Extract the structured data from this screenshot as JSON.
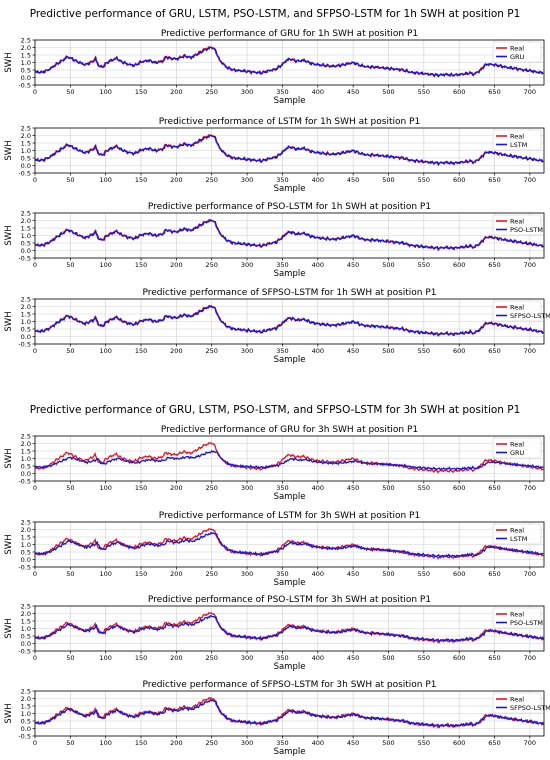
{
  "figure": {
    "suptitle_1h": "Predictive performance of GRU, LSTM, PSO-LSTM, and SFPSO-LSTM for 1h SWH at position P1",
    "suptitle_3h": "Predictive performance of GRU, LSTM, PSO-LSTM, and SFPSO-LSTM for 3h SWH at position P1"
  },
  "colors": {
    "real": "#e8141c",
    "pred": "#1414e6",
    "grid": "#cfcfcf"
  },
  "chart_data": [
    {
      "type": "line",
      "title": "Predictive performance of GRU for 1h SWH at position P1",
      "xlabel": "Sample",
      "ylabel": "SWH",
      "xlim": [
        0,
        720
      ],
      "ylim": [
        -0.5,
        2.5
      ],
      "xticks": [
        0,
        50,
        100,
        150,
        200,
        250,
        300,
        350,
        400,
        450,
        500,
        550,
        600,
        650,
        700
      ],
      "yticks": [
        -0.5,
        0.0,
        0.5,
        1.0,
        1.5,
        2.0,
        2.5
      ],
      "grid": true,
      "legend": "top-right",
      "series": [
        {
          "name": "Real"
        },
        {
          "name": "GRU"
        }
      ]
    },
    {
      "type": "line",
      "title": "Predictive performance of LSTM for 1h SWH at position P1",
      "xlabel": "Sample",
      "ylabel": "SWH",
      "xlim": [
        0,
        720
      ],
      "ylim": [
        -0.5,
        2.5
      ],
      "xticks": [
        0,
        50,
        100,
        150,
        200,
        250,
        300,
        350,
        400,
        450,
        500,
        550,
        600,
        650,
        700
      ],
      "yticks": [
        -0.5,
        0.0,
        0.5,
        1.0,
        1.5,
        2.0,
        2.5
      ],
      "grid": true,
      "legend": "top-right",
      "series": [
        {
          "name": "Real"
        },
        {
          "name": "LSTM"
        }
      ]
    },
    {
      "type": "line",
      "title": "Predictive performance of PSO-LSTM for 1h SWH at position P1",
      "xlabel": "Sample",
      "ylabel": "SWH",
      "xlim": [
        0,
        720
      ],
      "ylim": [
        -0.5,
        2.5
      ],
      "xticks": [
        0,
        50,
        100,
        150,
        200,
        250,
        300,
        350,
        400,
        450,
        500,
        550,
        600,
        650,
        700
      ],
      "yticks": [
        -0.5,
        0.0,
        0.5,
        1.0,
        1.5,
        2.0,
        2.5
      ],
      "grid": true,
      "legend": "top-right",
      "series": [
        {
          "name": "Real"
        },
        {
          "name": "PSO-LSTM"
        }
      ]
    },
    {
      "type": "line",
      "title": "Predictive performance of SFPSO-LSTM for 1h SWH at position P1",
      "xlabel": "Sample",
      "ylabel": "SWH",
      "xlim": [
        0,
        720
      ],
      "ylim": [
        -0.5,
        2.5
      ],
      "xticks": [
        0,
        50,
        100,
        150,
        200,
        250,
        300,
        350,
        400,
        450,
        500,
        550,
        600,
        650,
        700
      ],
      "yticks": [
        -0.5,
        0.0,
        0.5,
        1.0,
        1.5,
        2.0,
        2.5
      ],
      "grid": true,
      "legend": "top-right",
      "series": [
        {
          "name": "Real"
        },
        {
          "name": "SFPSO-LSTM"
        }
      ]
    },
    {
      "type": "line",
      "title": "Predictive performance of GRU for 3h SWH at position P1",
      "xlabel": "Sample",
      "ylabel": "SWH",
      "xlim": [
        0,
        720
      ],
      "ylim": [
        -0.5,
        2.5
      ],
      "xticks": [
        0,
        50,
        100,
        150,
        200,
        250,
        300,
        350,
        400,
        450,
        500,
        550,
        600,
        650,
        700
      ],
      "yticks": [
        -0.5,
        0.0,
        0.5,
        1.0,
        1.5,
        2.0,
        2.5
      ],
      "grid": true,
      "legend": "top-right",
      "series": [
        {
          "name": "Real"
        },
        {
          "name": "GRU"
        }
      ]
    },
    {
      "type": "line",
      "title": "Predictive performance of LSTM for 3h SWH at position P1",
      "xlabel": "Sample",
      "ylabel": "SWH",
      "xlim": [
        0,
        720
      ],
      "ylim": [
        -0.5,
        2.5
      ],
      "xticks": [
        0,
        50,
        100,
        150,
        200,
        250,
        300,
        350,
        400,
        450,
        500,
        550,
        600,
        650,
        700
      ],
      "yticks": [
        -0.5,
        0.0,
        0.5,
        1.0,
        1.5,
        2.0,
        2.5
      ],
      "grid": true,
      "legend": "top-right",
      "series": [
        {
          "name": "Real"
        },
        {
          "name": "LSTM"
        }
      ]
    },
    {
      "type": "line",
      "title": "Predictive performance of PSO-LSTM for 3h SWH at position P1",
      "xlabel": "Sample",
      "ylabel": "SWH",
      "xlim": [
        0,
        720
      ],
      "ylim": [
        -0.5,
        2.5
      ],
      "xticks": [
        0,
        50,
        100,
        150,
        200,
        250,
        300,
        350,
        400,
        450,
        500,
        550,
        600,
        650,
        700
      ],
      "yticks": [
        -0.5,
        0.0,
        0.5,
        1.0,
        1.5,
        2.0,
        2.5
      ],
      "grid": true,
      "legend": "top-right",
      "series": [
        {
          "name": "Real"
        },
        {
          "name": "PSO-LSTM"
        }
      ]
    },
    {
      "type": "line",
      "title": "Predictive performance of SFPSO-LSTM for 3h SWH at position P1",
      "xlabel": "Sample",
      "ylabel": "SWH",
      "xlim": [
        0,
        720
      ],
      "ylim": [
        -0.5,
        2.5
      ],
      "xticks": [
        0,
        50,
        100,
        150,
        200,
        250,
        300,
        350,
        400,
        450,
        500,
        550,
        600,
        650,
        700
      ],
      "yticks": [
        -0.5,
        0.0,
        0.5,
        1.0,
        1.5,
        2.0,
        2.5
      ],
      "grid": true,
      "legend": "top-right",
      "series": [
        {
          "name": "Real"
        },
        {
          "name": "SFPSO-LSTM"
        }
      ]
    }
  ],
  "real_keypoints": {
    "x": [
      0,
      10,
      20,
      30,
      40,
      45,
      50,
      60,
      70,
      80,
      85,
      90,
      95,
      100,
      105,
      110,
      115,
      120,
      130,
      140,
      150,
      160,
      170,
      180,
      185,
      190,
      200,
      210,
      220,
      230,
      240,
      250,
      255,
      260,
      270,
      280,
      290,
      300,
      310,
      320,
      330,
      340,
      350,
      355,
      360,
      370,
      380,
      390,
      400,
      410,
      420,
      430,
      440,
      450,
      460,
      470,
      480,
      490,
      500,
      510,
      520,
      530,
      540,
      550,
      560,
      570,
      580,
      590,
      600,
      610,
      615,
      620,
      630,
      635,
      640,
      650,
      660,
      670,
      680,
      690,
      700,
      710,
      720
    ],
    "y": [
      0.35,
      0.35,
      0.55,
      0.9,
      1.2,
      1.4,
      1.3,
      1.05,
      0.85,
      1.05,
      1.25,
      0.75,
      0.7,
      0.95,
      1.1,
      1.2,
      1.3,
      1.1,
      0.9,
      0.8,
      1.05,
      1.15,
      1.0,
      1.1,
      1.4,
      1.3,
      1.25,
      1.45,
      1.35,
      1.6,
      1.9,
      2.05,
      1.8,
      1.2,
      0.7,
      0.5,
      0.45,
      0.4,
      0.35,
      0.3,
      0.45,
      0.55,
      0.9,
      1.15,
      1.25,
      1.1,
      1.15,
      0.95,
      0.85,
      0.8,
      0.75,
      0.8,
      0.9,
      1.0,
      0.8,
      0.7,
      0.7,
      0.65,
      0.6,
      0.55,
      0.5,
      0.35,
      0.3,
      0.25,
      0.2,
      0.15,
      0.2,
      0.15,
      0.2,
      0.25,
      0.3,
      0.2,
      0.5,
      0.8,
      0.9,
      0.85,
      0.75,
      0.65,
      0.6,
      0.5,
      0.45,
      0.35,
      0.3
    ]
  },
  "pred_scale": [
    0.97,
    0.97,
    0.98,
    0.98,
    0.62,
    0.82,
    0.86,
    0.9
  ],
  "pred_shift": [
    1,
    1,
    1,
    1,
    4,
    3,
    2,
    2
  ]
}
